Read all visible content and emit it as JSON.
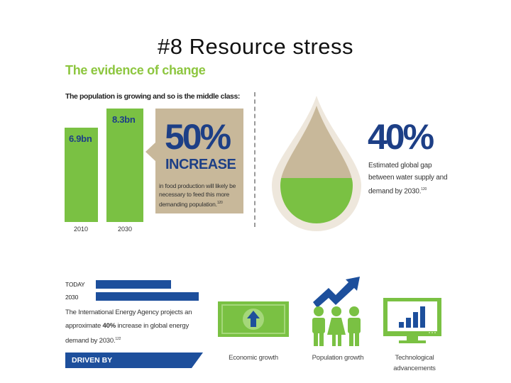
{
  "slide": {
    "title": "#8 Resource stress"
  },
  "evidence_heading": "The evidence of change",
  "population": {
    "heading": "The population is growing and so is the middle class:",
    "bars": [
      {
        "year": "2010",
        "value_label": "6.9bn",
        "value": 6.9
      },
      {
        "year": "2030",
        "value_label": "8.3bn",
        "value": 8.3
      }
    ],
    "food": {
      "big_number": "50%",
      "word": "INCREASE",
      "text": "in food production will likely be necessary to feed this more demanding population.",
      "footnote": "120"
    }
  },
  "water": {
    "big_number": "40%",
    "text": "Estimated global gap between water supply and demand by 2030.",
    "footnote": "120",
    "colors": {
      "drop_top": "#c8b89a",
      "drop_bottom": "#7ac143",
      "outline": "#eee7dc"
    }
  },
  "energy": {
    "today_label": "TODAY",
    "future_label": "2030",
    "today_fraction": 0.73,
    "future_fraction": 1.0,
    "text_before": "The International Energy Agency projects an approximate ",
    "highlight": "40%",
    "text_after": " increase in global energy demand by 2030.",
    "footnote": "122"
  },
  "drivers": {
    "heading": "DRIVEN BY",
    "items": [
      {
        "label": "Economic growth",
        "icon": "money-arrow-icon"
      },
      {
        "label": "Population growth",
        "icon": "people-arrow-icon"
      },
      {
        "label": "Technological advancements",
        "icon": "monitor-chart-icon"
      }
    ]
  },
  "colors": {
    "green": "#7ac143",
    "navy": "#1d3f86",
    "blue": "#1d4f9c",
    "tan": "#c8b89a",
    "heading_green": "#8dc63f"
  }
}
